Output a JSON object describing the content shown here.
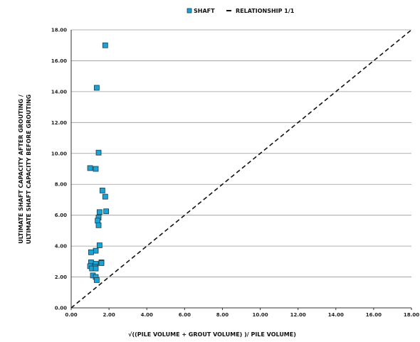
{
  "chart_data": {
    "type": "scatter",
    "title": "",
    "xlabel": "√((PILE VOLUME + GROUT VOLUME) )/ PILE VOLUME)",
    "ylabel_lines": [
      "ULTIMATE SHAFT CAPACITY AFTER GROUTING /",
      "ULTIMATE SHAFT CAPACITY BEFORE GROUTING"
    ],
    "xlim": [
      0,
      18
    ],
    "ylim": [
      0,
      18
    ],
    "x_ticks": [
      "0.00",
      "2.00",
      "4.00",
      "6.00",
      "8.00",
      "10.00",
      "12.00",
      "14.00",
      "16.00",
      "18.00"
    ],
    "y_ticks": [
      "0.00",
      "2.00",
      "4.00",
      "6.00",
      "8.00",
      "10.00",
      "12.00",
      "14.00",
      "16.00",
      "18.00"
    ],
    "grid": "horizontal",
    "legend_placement": "top",
    "series": [
      {
        "name": "SHAFT",
        "marker": "square",
        "color": "#1aa3d6",
        "points": [
          [
            1.8,
            17.0
          ],
          [
            1.35,
            14.25
          ],
          [
            1.45,
            10.05
          ],
          [
            1.0,
            9.05
          ],
          [
            1.3,
            9.0
          ],
          [
            1.65,
            7.6
          ],
          [
            1.8,
            7.2
          ],
          [
            1.5,
            6.2
          ],
          [
            1.85,
            6.25
          ],
          [
            1.45,
            5.85
          ],
          [
            1.4,
            5.65
          ],
          [
            1.45,
            5.35
          ],
          [
            1.5,
            4.05
          ],
          [
            1.3,
            3.7
          ],
          [
            1.05,
            3.6
          ],
          [
            1.05,
            2.95
          ],
          [
            1.6,
            2.95
          ],
          [
            1.6,
            2.9
          ],
          [
            1.0,
            2.7
          ],
          [
            1.3,
            2.85
          ],
          [
            1.25,
            2.65
          ],
          [
            1.1,
            2.55
          ],
          [
            1.3,
            2.55
          ],
          [
            1.15,
            2.1
          ],
          [
            1.3,
            2.0
          ],
          [
            1.35,
            1.8
          ]
        ]
      },
      {
        "name": "RELATIONSHIP 1/1",
        "line_style": "dashed",
        "color": "#111111",
        "points": [
          [
            0,
            0
          ],
          [
            18,
            18
          ]
        ]
      }
    ]
  }
}
